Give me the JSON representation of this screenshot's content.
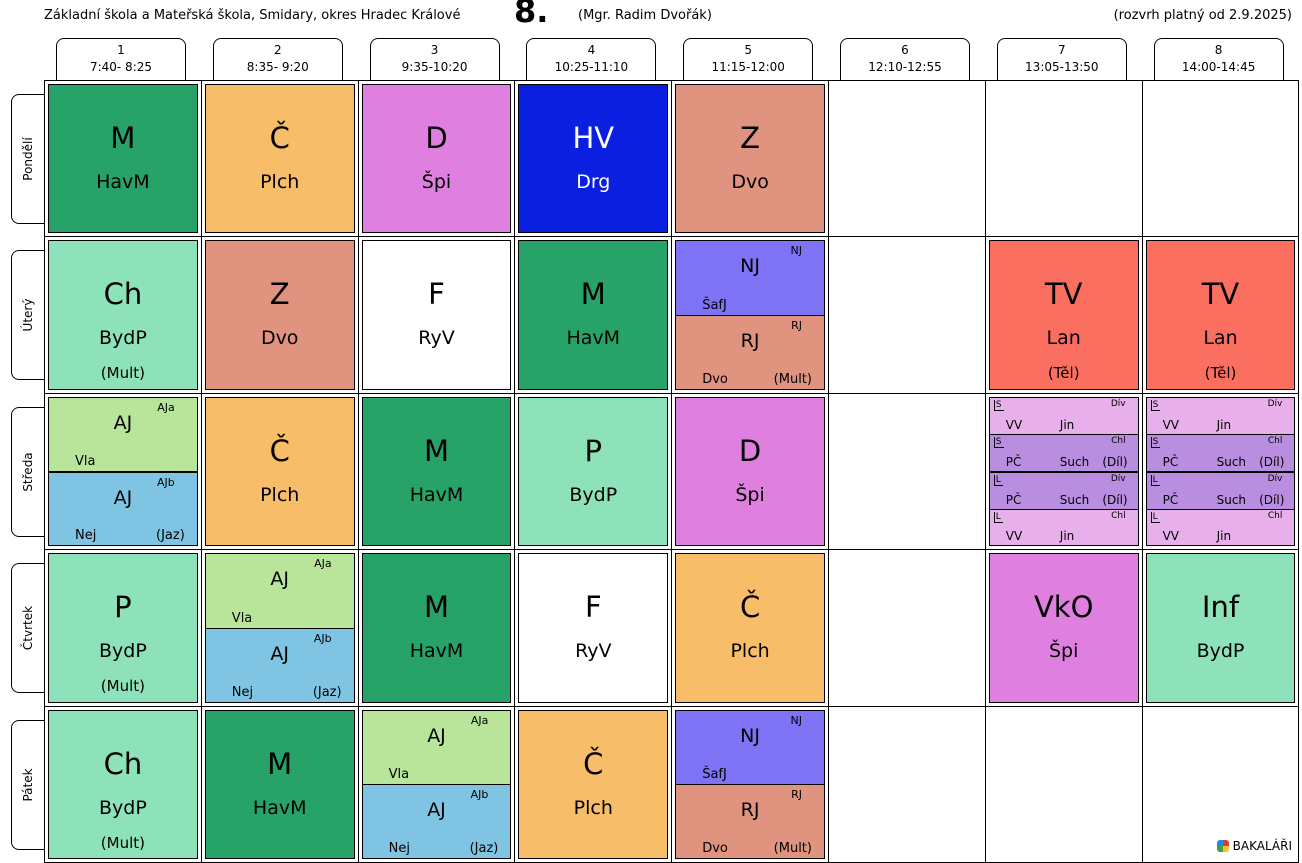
{
  "header": {
    "school": "Základní škola a Mateřská škola, Smidary, okres Hradec Králové",
    "class_name": "8.",
    "teacher": "(Mgr. Radim Dvořák)",
    "validity": "(rozvrh platný od 2.9.2025)"
  },
  "periods": [
    {
      "num": "1",
      "time": "7:40- 8:25"
    },
    {
      "num": "2",
      "time": "8:35- 9:20"
    },
    {
      "num": "3",
      "time": "9:35-10:20"
    },
    {
      "num": "4",
      "time": "10:25-11:10"
    },
    {
      "num": "5",
      "time": "11:15-12:00"
    },
    {
      "num": "6",
      "time": "12:10-12:55"
    },
    {
      "num": "7",
      "time": "13:05-13:50"
    },
    {
      "num": "8",
      "time": "14:00-14:45"
    }
  ],
  "days": [
    {
      "name": "Pondělí",
      "cells": [
        {
          "kind": "single",
          "subject": "M",
          "teacher": "HavM",
          "room": "",
          "color": "#27a268"
        },
        {
          "kind": "single",
          "subject": "Č",
          "teacher": "Plch",
          "room": "",
          "color": "#f7bd68"
        },
        {
          "kind": "single",
          "subject": "D",
          "teacher": "Špi",
          "room": "",
          "color": "#df80e0"
        },
        {
          "kind": "single",
          "subject": "HV",
          "teacher": "Drg",
          "room": "",
          "color": "#0a1fe0"
        },
        {
          "kind": "single",
          "subject": "Z",
          "teacher": "Dvo",
          "room": "",
          "color": "#e09480"
        },
        {
          "kind": "empty"
        },
        {
          "kind": "empty"
        },
        {
          "kind": "empty"
        }
      ]
    },
    {
      "name": "Úterý",
      "cells": [
        {
          "kind": "single",
          "subject": "Ch",
          "teacher": "BydP",
          "room": "(Mult)",
          "color": "#8ee2b9"
        },
        {
          "kind": "single",
          "subject": "Z",
          "teacher": "Dvo",
          "room": "",
          "color": "#e09480"
        },
        {
          "kind": "single",
          "subject": "F",
          "teacher": "RyV",
          "room": "",
          "color": "#ffffff"
        },
        {
          "kind": "single",
          "subject": "M",
          "teacher": "HavM",
          "room": "",
          "color": "#27a268"
        },
        {
          "kind": "split",
          "parts": [
            {
              "group": "NJ",
              "subject": "NJ",
              "teacher": "ŠafJ",
              "room": "",
              "color": "#7e73f5"
            },
            {
              "group": "RJ",
              "subject": "RJ",
              "teacher": "Dvo",
              "room": "(Mult)",
              "color": "#e09480"
            }
          ]
        },
        {
          "kind": "empty"
        },
        {
          "kind": "single",
          "subject": "TV",
          "teacher": "Lan",
          "room": "(Těl)",
          "color": "#fb6f61"
        },
        {
          "kind": "single",
          "subject": "TV",
          "teacher": "Lan",
          "room": "(Těl)",
          "color": "#fb6f61"
        }
      ]
    },
    {
      "name": "Středa",
      "cells": [
        {
          "kind": "split",
          "parts": [
            {
              "group": "AJa",
              "subject": "AJ",
              "teacher": "Vla",
              "room": "",
              "color": "#b8e59a"
            },
            {
              "group": "AJb",
              "subject": "AJ",
              "teacher": "Nej",
              "room": "(Jaz)",
              "color": "#7fc4e2"
            }
          ]
        },
        {
          "kind": "single",
          "subject": "Č",
          "teacher": "Plch",
          "room": "",
          "color": "#f7bd68"
        },
        {
          "kind": "single",
          "subject": "M",
          "teacher": "HavM",
          "room": "",
          "color": "#27a268"
        },
        {
          "kind": "single",
          "subject": "P",
          "teacher": "BydP",
          "room": "",
          "color": "#8ee2b9"
        },
        {
          "kind": "single",
          "subject": "D",
          "teacher": "Špi",
          "room": "",
          "color": "#df80e0"
        },
        {
          "kind": "empty"
        },
        {
          "kind": "quad",
          "parts": [
            {
              "mark": "S",
              "group": "Dív",
              "subject": "VV",
              "teacher": "Jin",
              "room": "",
              "color": "#e8b0ea"
            },
            {
              "mark": "S",
              "group": "Chl",
              "subject": "PČ",
              "teacher": "Such",
              "room": "(Díl)",
              "color": "#b98ee0"
            },
            {
              "mark": "L",
              "group": "Dív",
              "subject": "PČ",
              "teacher": "Such",
              "room": "(Díl)",
              "color": "#b98ee0"
            },
            {
              "mark": "L",
              "group": "Chl",
              "subject": "VV",
              "teacher": "Jin",
              "room": "",
              "color": "#e8b0ea"
            }
          ]
        },
        {
          "kind": "quad",
          "parts": [
            {
              "mark": "S",
              "group": "Dív",
              "subject": "VV",
              "teacher": "Jin",
              "room": "",
              "color": "#e8b0ea"
            },
            {
              "mark": "S",
              "group": "Chl",
              "subject": "PČ",
              "teacher": "Such",
              "room": "(Díl)",
              "color": "#b98ee0"
            },
            {
              "mark": "L",
              "group": "Dív",
              "subject": "PČ",
              "teacher": "Such",
              "room": "(Díl)",
              "color": "#b98ee0"
            },
            {
              "mark": "L",
              "group": "Chl",
              "subject": "VV",
              "teacher": "Jin",
              "room": "",
              "color": "#e8b0ea"
            }
          ]
        }
      ]
    },
    {
      "name": "Čtvrtek",
      "cells": [
        {
          "kind": "single",
          "subject": "P",
          "teacher": "BydP",
          "room": "(Mult)",
          "color": "#8ee2b9"
        },
        {
          "kind": "split",
          "parts": [
            {
              "group": "AJa",
              "subject": "AJ",
              "teacher": "Vla",
              "room": "",
              "color": "#b8e59a"
            },
            {
              "group": "AJb",
              "subject": "AJ",
              "teacher": "Nej",
              "room": "(Jaz)",
              "color": "#7fc4e2"
            }
          ]
        },
        {
          "kind": "single",
          "subject": "M",
          "teacher": "HavM",
          "room": "",
          "color": "#27a268"
        },
        {
          "kind": "single",
          "subject": "F",
          "teacher": "RyV",
          "room": "",
          "color": "#ffffff"
        },
        {
          "kind": "single",
          "subject": "Č",
          "teacher": "Plch",
          "room": "",
          "color": "#f7bd68"
        },
        {
          "kind": "empty"
        },
        {
          "kind": "single",
          "subject": "VkO",
          "teacher": "Špi",
          "room": "",
          "color": "#df80e0"
        },
        {
          "kind": "single",
          "subject": "Inf",
          "teacher": "BydP",
          "room": "",
          "color": "#8ee2b9"
        }
      ]
    },
    {
      "name": "Pátek",
      "cells": [
        {
          "kind": "single",
          "subject": "Ch",
          "teacher": "BydP",
          "room": "(Mult)",
          "color": "#8ee2b9"
        },
        {
          "kind": "single",
          "subject": "M",
          "teacher": "HavM",
          "room": "",
          "color": "#27a268"
        },
        {
          "kind": "split",
          "parts": [
            {
              "group": "AJa",
              "subject": "AJ",
              "teacher": "Vla",
              "room": "",
              "color": "#b8e59a"
            },
            {
              "group": "AJb",
              "subject": "AJ",
              "teacher": "Nej",
              "room": "(Jaz)",
              "color": "#7fc4e2"
            }
          ]
        },
        {
          "kind": "single",
          "subject": "Č",
          "teacher": "Plch",
          "room": "",
          "color": "#f7bd68"
        },
        {
          "kind": "split",
          "parts": [
            {
              "group": "NJ",
              "subject": "NJ",
              "teacher": "ŠafJ",
              "room": "",
              "color": "#7e73f5"
            },
            {
              "group": "RJ",
              "subject": "RJ",
              "teacher": "Dvo",
              "room": "(Mult)",
              "color": "#e09480"
            }
          ]
        },
        {
          "kind": "empty"
        },
        {
          "kind": "empty"
        },
        {
          "kind": "empty"
        }
      ]
    }
  ],
  "branding": {
    "logo_text": "BAKALÁŘI",
    "logo_icon": "bakalari-logo-icon"
  }
}
